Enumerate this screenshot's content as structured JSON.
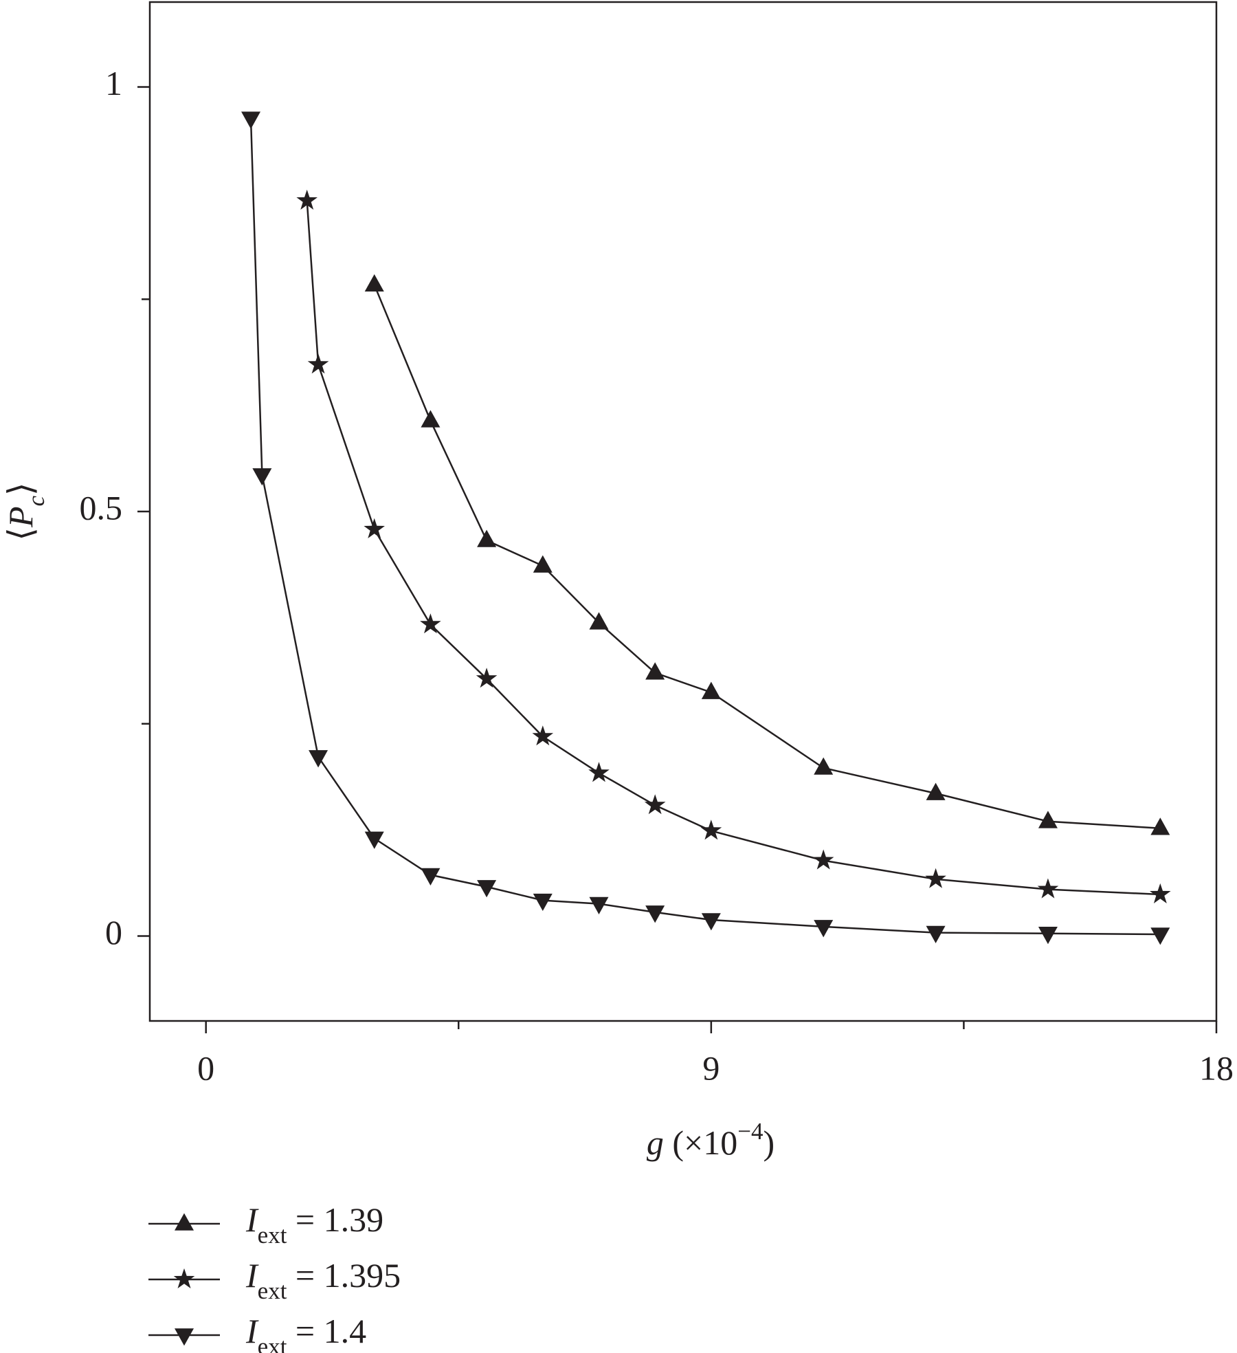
{
  "chart_data": {
    "type": "line",
    "xlabel": "g (×10−4)",
    "ylabel": "⟨Pc⟩",
    "xlim": [
      -1,
      18
    ],
    "ylim": [
      -0.1,
      1.1
    ],
    "xticks": [
      0,
      9,
      18
    ],
    "yticks": [
      0,
      0.5,
      1
    ],
    "xminor": [
      4.5,
      13.5
    ],
    "yminor": [
      0.25,
      0.75
    ],
    "color": "#231f20",
    "series": [
      {
        "name": "Iext = 1.39",
        "marker": "triangle-up",
        "x": [
          3,
          4,
          5,
          6,
          7,
          8,
          9,
          11,
          13,
          15,
          17
        ],
        "values": [
          0.767,
          0.607,
          0.466,
          0.436,
          0.369,
          0.31,
          0.287,
          0.198,
          0.168,
          0.135,
          0.127
        ]
      },
      {
        "name": "Iext = 1.395",
        "marker": "star",
        "x": [
          1.8,
          2,
          3,
          4,
          5,
          6,
          7,
          8,
          9,
          11,
          13,
          15,
          17
        ],
        "values": [
          0.866,
          0.673,
          0.479,
          0.367,
          0.303,
          0.235,
          0.192,
          0.154,
          0.124,
          0.089,
          0.067,
          0.055,
          0.049
        ]
      },
      {
        "name": "Iext = 1.4",
        "marker": "triangle-down",
        "x": [
          0.8,
          1,
          2,
          3,
          4,
          5,
          6,
          7,
          8,
          9,
          11,
          13,
          15,
          17
        ],
        "values": [
          0.963,
          0.543,
          0.211,
          0.115,
          0.072,
          0.058,
          0.042,
          0.038,
          0.028,
          0.019,
          0.011,
          0.004,
          0.003,
          0.002
        ]
      }
    ]
  }
}
